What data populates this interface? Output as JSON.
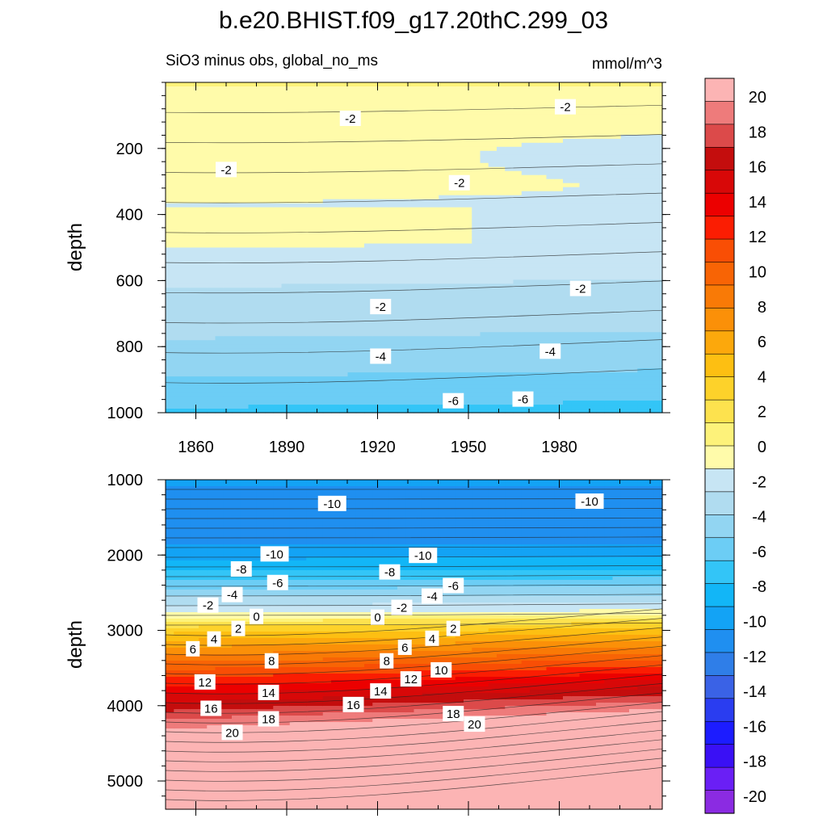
{
  "title": "b.e20.BHIST.f09_g17.20thC.299_03",
  "colors": {
    "levels": [
      "#8b2be2",
      "#6a1ff5",
      "#3a10f5",
      "#1c1cff",
      "#2a3df0",
      "#3a62e6",
      "#2f7ee8",
      "#1f8ff0",
      "#13a3f5",
      "#12b6f7",
      "#33c5f7",
      "#6ccdf5",
      "#92d5f2",
      "#b0dcf0",
      "#c7e5f4",
      "#fffbaa",
      "#fdf27a",
      "#fde24e",
      "#fdd22a",
      "#fdbf12",
      "#fca80c",
      "#fb9008",
      "#f97a06",
      "#f86405",
      "#f94e05",
      "#fb1d02",
      "#ec0000",
      "#d80808",
      "#c40d0d",
      "#dc4a4a",
      "#ee7b7b",
      "#fcb4b4"
    ],
    "line": "#222222"
  },
  "chart_data": [
    {
      "type": "contour",
      "subtitle_left": "SiO3 minus obs, global_no_ms",
      "subtitle_right": "mmol/m^3",
      "ylabel": "depth",
      "xlim": [
        1850,
        2014
      ],
      "ylim": [
        0,
        1000
      ],
      "x_ticks": [
        "1860",
        "1890",
        "1920",
        "1950",
        "1980"
      ],
      "y_ticks": [
        "200",
        "400",
        "600",
        "800",
        "1000"
      ],
      "contour_labels": [
        {
          "text": "-2",
          "x": 1911,
          "y": 110
        },
        {
          "text": "-2",
          "x": 1982,
          "y": 75
        },
        {
          "text": "-2",
          "x": 1870,
          "y": 265
        },
        {
          "text": "-2",
          "x": 1947,
          "y": 305
        },
        {
          "text": "-2",
          "x": 1921,
          "y": 680
        },
        {
          "text": "-2",
          "x": 1987,
          "y": 625
        },
        {
          "text": "-4",
          "x": 1921,
          "y": 830
        },
        {
          "text": "-4",
          "x": 1977,
          "y": 815
        },
        {
          "text": "-6",
          "x": 1945,
          "y": 965
        },
        {
          "text": "-6",
          "x": 1968,
          "y": 960
        }
      ]
    },
    {
      "type": "contour",
      "ylabel": "depth",
      "xlim": [
        1850,
        2014
      ],
      "ylim": [
        1000,
        5375
      ],
      "y_ticks": [
        "1000",
        "2000",
        "3000",
        "4000",
        "5000"
      ],
      "contour_labels": [
        {
          "text": "-10",
          "x": 1905,
          "y": 1320
        },
        {
          "text": "-10",
          "x": 1990,
          "y": 1290
        },
        {
          "text": "-10",
          "x": 1886,
          "y": 1990
        },
        {
          "text": "-10",
          "x": 1935,
          "y": 2010
        },
        {
          "text": "-8",
          "x": 1875,
          "y": 2190
        },
        {
          "text": "-8",
          "x": 1924,
          "y": 2230
        },
        {
          "text": "-6",
          "x": 1887,
          "y": 2370
        },
        {
          "text": "-6",
          "x": 1945,
          "y": 2410
        },
        {
          "text": "-4",
          "x": 1872,
          "y": 2530
        },
        {
          "text": "-4",
          "x": 1938,
          "y": 2550
        },
        {
          "text": "-2",
          "x": 1864,
          "y": 2670
        },
        {
          "text": "-2",
          "x": 1928,
          "y": 2700
        },
        {
          "text": "0",
          "x": 1880,
          "y": 2820
        },
        {
          "text": "0",
          "x": 1920,
          "y": 2830
        },
        {
          "text": "2",
          "x": 1874,
          "y": 2980
        },
        {
          "text": "2",
          "x": 1945,
          "y": 2980
        },
        {
          "text": "4",
          "x": 1866,
          "y": 3120
        },
        {
          "text": "4",
          "x": 1938,
          "y": 3110
        },
        {
          "text": "6",
          "x": 1859,
          "y": 3250
        },
        {
          "text": "6",
          "x": 1929,
          "y": 3230
        },
        {
          "text": "8",
          "x": 1885,
          "y": 3410
        },
        {
          "text": "8",
          "x": 1923,
          "y": 3410
        },
        {
          "text": "10",
          "x": 1941,
          "y": 3530
        },
        {
          "text": "12",
          "x": 1863,
          "y": 3690
        },
        {
          "text": "12",
          "x": 1931,
          "y": 3650
        },
        {
          "text": "14",
          "x": 1884,
          "y": 3830
        },
        {
          "text": "14",
          "x": 1921,
          "y": 3810
        },
        {
          "text": "16",
          "x": 1865,
          "y": 4040
        },
        {
          "text": "16",
          "x": 1912,
          "y": 3990
        },
        {
          "text": "18",
          "x": 1884,
          "y": 4180
        },
        {
          "text": "18",
          "x": 1945,
          "y": 4110
        },
        {
          "text": "20",
          "x": 1872,
          "y": 4360
        },
        {
          "text": "20",
          "x": 1952,
          "y": 4250
        }
      ]
    },
    {
      "type": "colorbar",
      "levels_min": -21,
      "levels_step": 1.3125,
      "tick_labels": [
        "20",
        "18",
        "16",
        "14",
        "12",
        "10",
        "8",
        "6",
        "4",
        "2",
        "0",
        "-2",
        "-4",
        "-6",
        "-8",
        "-10",
        "-12",
        "-14",
        "-16",
        "-18",
        "-20"
      ]
    }
  ]
}
